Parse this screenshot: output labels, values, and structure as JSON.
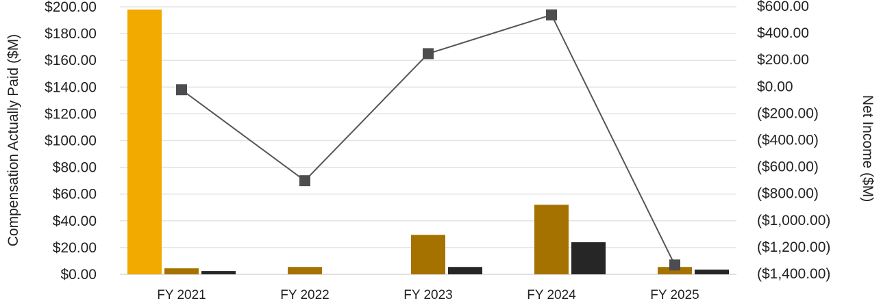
{
  "chart_data": {
    "type": "bar",
    "categories": [
      "FY 2021",
      "FY 2022",
      "FY 2023",
      "FY 2024",
      "FY 2025"
    ],
    "series": [
      {
        "kind": "bar",
        "axis": "left",
        "color": "#f2a900",
        "values": [
          198,
          null,
          null,
          null,
          null
        ]
      },
      {
        "kind": "bar",
        "axis": "left",
        "color": "#a57200",
        "values": [
          4.5,
          5.5,
          29.5,
          52,
          5.5
        ]
      },
      {
        "kind": "bar",
        "axis": "left",
        "color": "#262626",
        "values": [
          2.5,
          null,
          5.5,
          24,
          3.5
        ]
      },
      {
        "kind": "line",
        "axis": "right",
        "color": "#555555",
        "marker": "square",
        "values": [
          -20,
          -700,
          250,
          540,
          -1330
        ]
      }
    ],
    "ylabel": "Compensation Actually Paid ($M)",
    "y2label": "Net Income ($M)",
    "ylim": [
      0,
      200
    ],
    "y2lim": [
      -1400,
      600
    ],
    "yticks": [
      "$0.00",
      "$20.00",
      "$40.00",
      "$60.00",
      "$80.00",
      "$100.00",
      "$120.00",
      "$140.00",
      "$160.00",
      "$180.00",
      "$200.00"
    ],
    "y2ticks": [
      "($1,400.00)",
      "($1,200.00)",
      "($1,000.00)",
      "($800.00)",
      "($600.00)",
      "($400.00)",
      "($200.00)",
      "$0.00",
      "$200.00",
      "$400.00",
      "$600.00"
    ],
    "grid": true
  }
}
